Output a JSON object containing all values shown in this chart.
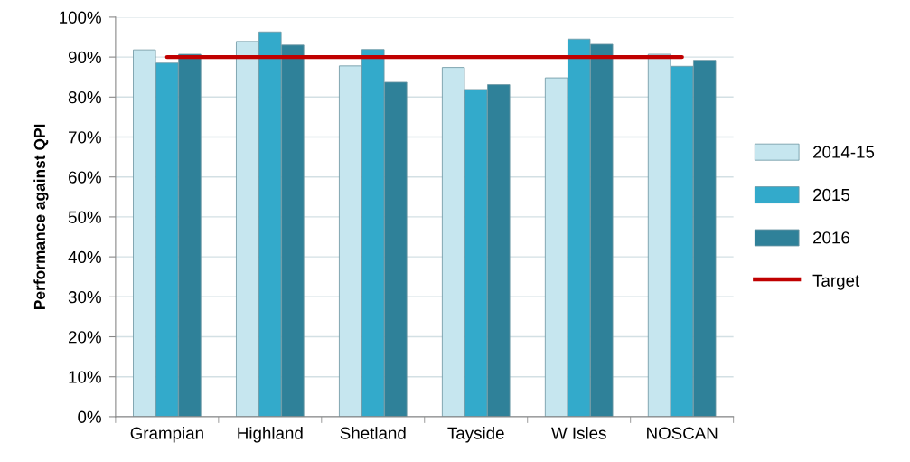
{
  "chart_data": {
    "type": "bar",
    "ylabel": "Performance against QPI",
    "categories": [
      "Grampian",
      "Highland",
      "Shetland",
      "Tayside",
      "W Isles",
      "NOSCAN"
    ],
    "series": [
      {
        "name": "2014-15",
        "color": "#c6e6ef",
        "values": [
          91.8,
          93.9,
          87.8,
          87.4,
          84.8,
          90.7
        ]
      },
      {
        "name": "2015",
        "color": "#33aacb",
        "values": [
          88.5,
          96.3,
          91.9,
          81.9,
          94.5,
          87.7
        ]
      },
      {
        "name": "2016",
        "color": "#2f8199",
        "values": [
          90.7,
          93.0,
          83.7,
          83.1,
          93.2,
          89.2
        ]
      },
      {
        "name": "Target",
        "type": "line",
        "color": "#c00000",
        "values": [
          90,
          90,
          90,
          90,
          90,
          90
        ]
      }
    ],
    "ylim": [
      0,
      100
    ],
    "yticks": [
      {
        "value": 0,
        "label": "0%"
      },
      {
        "value": 10,
        "label": "10%"
      },
      {
        "value": 20,
        "label": "20%"
      },
      {
        "value": 30,
        "label": "30%"
      },
      {
        "value": 40,
        "label": "40%"
      },
      {
        "value": 50,
        "label": "50%"
      },
      {
        "value": 60,
        "label": "60%"
      },
      {
        "value": 70,
        "label": "70%"
      },
      {
        "value": 80,
        "label": "80%"
      },
      {
        "value": 90,
        "label": "90%"
      },
      {
        "value": 100,
        "label": "100%"
      }
    ],
    "grid": "y",
    "legend": "right"
  }
}
